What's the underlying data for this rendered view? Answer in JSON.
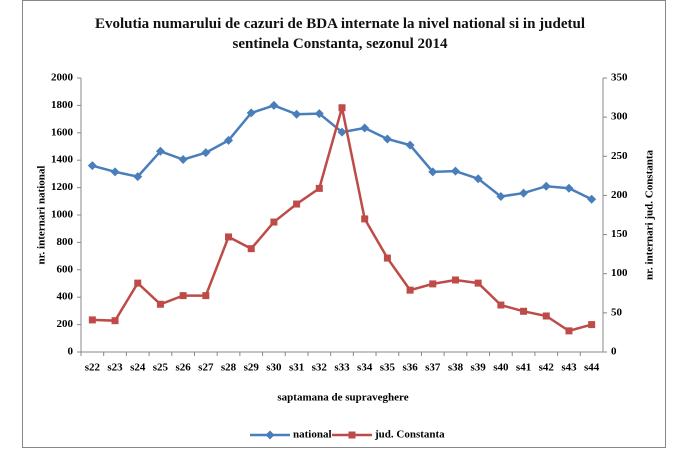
{
  "chart_data": {
    "type": "line",
    "title": "Evolutia numarului de cazuri de BDA internate la nivel national si in judetul sentinela Constanta, sezonul 2014",
    "x_label": "saptamana de supraveghere",
    "y_label": "nr. internari national",
    "y2_label": "nr. internari jud. Constanta",
    "categories": [
      "s22",
      "s23",
      "s24",
      "s25",
      "s26",
      "s27",
      "s28",
      "s29",
      "s30",
      "s31",
      "s32",
      "s33",
      "s34",
      "s35",
      "s36",
      "s37",
      "s38",
      "s39",
      "s40",
      "s41",
      "s42",
      "s43",
      "s44"
    ],
    "series": [
      {
        "name": "national",
        "color": "#4a7ebb",
        "marker": "diamond",
        "values": [
          1360,
          1315,
          1280,
          1465,
          1405,
          1455,
          1545,
          1745,
          1800,
          1735,
          1740,
          1605,
          1635,
          1555,
          1510,
          1315,
          1320,
          1265,
          1135,
          1160,
          1210,
          1195,
          1115
        ]
      },
      {
        "name": "jud. Constanta",
        "color": "#be4b48",
        "marker": "square",
        "axis": "y2",
        "values": [
          41,
          40,
          88,
          61,
          72,
          72,
          147,
          132,
          166,
          189,
          209,
          312,
          170,
          120,
          79,
          87,
          92,
          88,
          60,
          52,
          46,
          27,
          35
        ]
      }
    ],
    "ylim": [
      0,
      2000
    ],
    "yticks": [
      0,
      200,
      400,
      600,
      800,
      1000,
      1200,
      1400,
      1600,
      1800,
      2000
    ],
    "y2lim": [
      0,
      350
    ],
    "y2ticks": [
      0,
      50,
      100,
      150,
      200,
      250,
      300,
      350
    ],
    "grid": false,
    "legend": "bottom"
  }
}
